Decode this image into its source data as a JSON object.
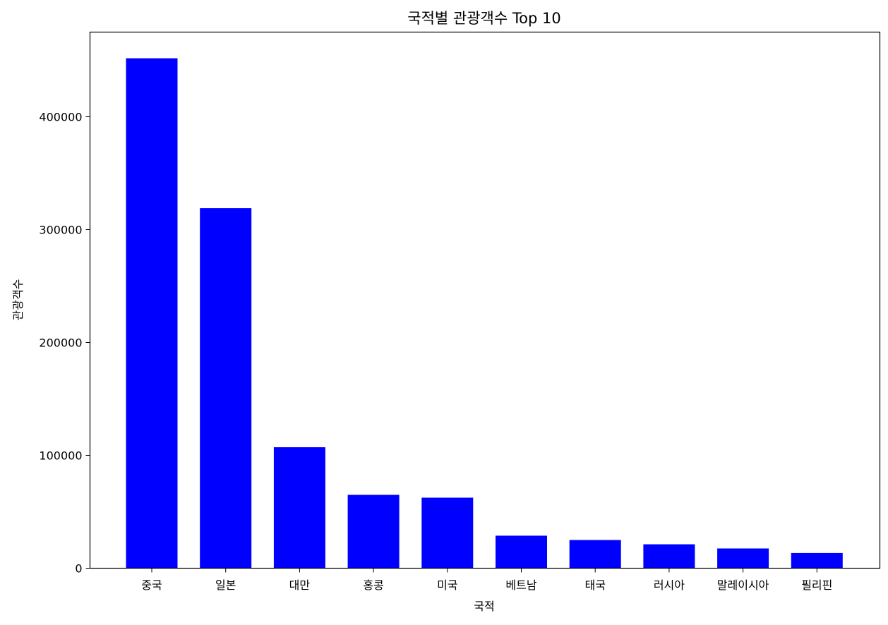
{
  "chart_data": {
    "type": "bar",
    "title": "국적별 관광객수 Top 10",
    "xlabel": "국적",
    "ylabel": "관광객수",
    "categories": [
      "중국",
      "일본",
      "대만",
      "홍콩",
      "미국",
      "베트남",
      "태국",
      "러시아",
      "말레이시아",
      "필리핀"
    ],
    "values": [
      451800,
      319000,
      107200,
      65000,
      62500,
      28800,
      25000,
      21200,
      17500,
      13500
    ],
    "ylim": [
      0,
      475000
    ],
    "yticks": [
      0,
      100000,
      200000,
      300000,
      400000
    ],
    "ytick_labels": [
      "0",
      "100000",
      "200000",
      "300000",
      "400000"
    ],
    "bar_color": "#0000ff",
    "grid": false,
    "legend": "none"
  }
}
